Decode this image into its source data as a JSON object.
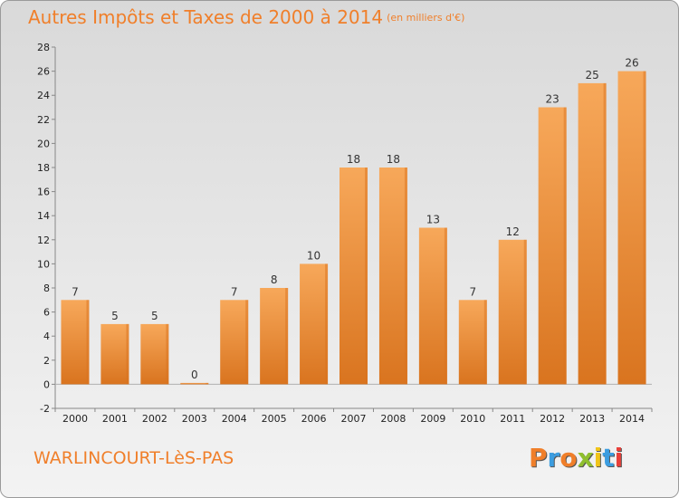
{
  "header": {
    "title": "Autres Impôts et Taxes de 2000 à 2014",
    "unit": "(en milliers d'€)"
  },
  "footer": {
    "city": "WARLINCOURT-LèS-PAS",
    "logo": "Proxiti"
  },
  "colors": {
    "accent": "#f07f2a",
    "bar_light": "#f7a85a",
    "bar_dark": "#d9741f",
    "logo_letters": [
      "#f07f2a",
      "#3c9de0",
      "#f07f2a",
      "#8fbf2f",
      "#f0c419",
      "#3c9de0",
      "#e8403a"
    ]
  },
  "chart_data": {
    "type": "bar",
    "title": "Autres Impôts et Taxes de 2000 à 2014",
    "subtitle": "(en milliers d'€)",
    "categories": [
      "2000",
      "2001",
      "2002",
      "2003",
      "2004",
      "2005",
      "2006",
      "2007",
      "2008",
      "2009",
      "2010",
      "2011",
      "2012",
      "2013",
      "2014"
    ],
    "values": [
      7,
      5,
      5,
      0,
      7,
      8,
      10,
      18,
      18,
      13,
      7,
      12,
      23,
      25,
      26
    ],
    "data_labels": [
      "7",
      "5",
      "5",
      "0",
      "7",
      "8",
      "10",
      "18",
      "18",
      "13",
      "7",
      "12",
      "23",
      "25",
      "26"
    ],
    "ylim": [
      -2,
      28
    ],
    "yticks": [
      -2,
      0,
      2,
      4,
      6,
      8,
      10,
      12,
      14,
      16,
      18,
      20,
      22,
      24,
      26,
      28
    ],
    "ytick_labels": [
      "-2",
      "0",
      "2",
      "4",
      "6",
      "8",
      "10",
      "12",
      "14",
      "16",
      "18",
      "20",
      "22",
      "24",
      "26",
      "28"
    ],
    "grid": false,
    "xlabel": "",
    "ylabel": ""
  }
}
